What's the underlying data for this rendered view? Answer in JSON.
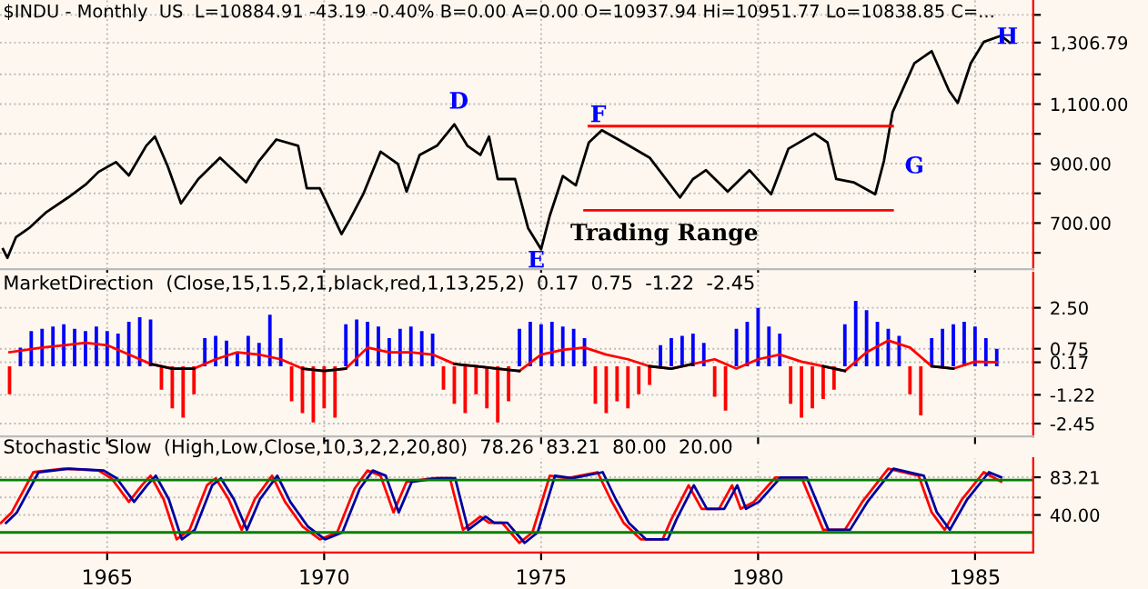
{
  "chart_data": [
    {
      "type": "line",
      "title": "$INDU - Monthly  US  L=10884.91 -43.19 -0.40% B=0.00 A=0.00 O=10937.94 Hi=10951.77 Lo=10838.85 C=...",
      "series": [
        {
          "color": "#000000",
          "x": [
            1962.6,
            1962.7,
            1962.9,
            1963.2,
            1963.6,
            1964.1,
            1964.5,
            1964.8,
            1965.2,
            1965.5,
            1965.9,
            1966.1,
            1966.4,
            1966.7,
            1967.1,
            1967.6,
            1968.2,
            1968.5,
            1968.9,
            1969.4,
            1969.6,
            1969.9,
            1970.4,
            1970.6,
            1970.9,
            1971.3,
            1971.7,
            1971.9,
            1972.2,
            1972.6,
            1973.0,
            1973.3,
            1973.6,
            1973.8,
            1974.0,
            1974.4,
            1974.7,
            1975.0,
            1975.2,
            1975.5,
            1975.8,
            1976.1,
            1976.4,
            1976.9,
            1977.5,
            1978.2,
            1978.5,
            1978.8,
            1979.3,
            1979.8,
            1980.3,
            1980.7,
            1981.3,
            1981.6,
            1981.8,
            1982.2,
            1982.7,
            1982.9,
            1983.1,
            1983.6,
            1984.0,
            1984.4,
            1984.6,
            1984.9,
            1985.2,
            1985.6,
            1985.8
          ],
          "values": [
            612,
            583,
            653,
            683,
            737,
            786,
            829,
            872,
            905,
            860,
            960,
            991,
            889,
            766,
            848,
            920,
            837,
            909,
            981,
            960,
            817,
            817,
            663,
            714,
            797,
            940,
            899,
            806,
            929,
            960,
            1032,
            960,
            929,
            991,
            848,
            848,
            683,
            612,
            725,
            858,
            827,
            971,
            1012,
            971,
            920,
            786,
            848,
            878,
            806,
            878,
            797,
            950,
            1001,
            971,
            848,
            837,
            797,
            909,
            1073,
            1237,
            1278,
            1145,
            1104,
            1237,
            1309,
            1330,
            1306.79
          ]
        },
        {
          "color": "#ff0000",
          "x": [
            1976.1,
            1983.1
          ],
          "values": [
            1026,
            1026
          ]
        },
        {
          "color": "#ff0000",
          "x": [
            1976.0,
            1983.1
          ],
          "values": [
            743,
            743
          ]
        }
      ],
      "annotations": [
        "D",
        "E",
        "F",
        "G",
        "H",
        "Trading Range"
      ],
      "xlim": [
        1962.53,
        1986.34
      ],
      "ylim": [
        545,
        1450
      ],
      "xticks": [
        1965,
        1970,
        1975,
        1980,
        1985
      ],
      "yticks": [
        {
          "value": 600,
          "label": null
        },
        {
          "value": 700,
          "label": "700.00"
        },
        {
          "value": 800,
          "label": null
        },
        {
          "value": 900,
          "label": "900.00"
        },
        {
          "value": 1000,
          "label": null
        },
        {
          "value": 1100,
          "label": "1,100.00"
        },
        {
          "value": 1200,
          "label": null
        },
        {
          "value": 1306.79,
          "label": "1,306.79"
        },
        {
          "value": 1400,
          "label": null
        }
      ],
      "grid": true,
      "tick_labels": "y"
    },
    {
      "type": "bar",
      "title": "MarketDirection  (Close,15,1.5,2,1,black,red,1,13,25,2)  0.17  0.75  -1.22  -2.45",
      "series": [
        {
          "type": "bar",
          "color": "#0000ff",
          "x": [
            1963.0,
            1963.25,
            1963.5,
            1963.75,
            1964.0,
            1964.25,
            1964.5,
            1964.75,
            1965.0,
            1965.25,
            1965.5,
            1965.75,
            1966.0,
            1967.25,
            1967.5,
            1967.75,
            1968.0,
            1968.25,
            1968.5,
            1968.75,
            1969.0,
            1970.5,
            1970.75,
            1971.0,
            1971.25,
            1971.5,
            1971.75,
            1972.0,
            1972.25,
            1972.5,
            1974.5,
            1974.75,
            1975.0,
            1975.25,
            1975.5,
            1975.75,
            1976.0,
            1977.75,
            1978.0,
            1978.25,
            1978.5,
            1978.75,
            1979.5,
            1979.75,
            1980.0,
            1980.25,
            1980.5,
            1982.0,
            1982.25,
            1982.5,
            1982.75,
            1983.0,
            1983.25,
            1984.0,
            1984.25,
            1984.5,
            1984.75,
            1985.0,
            1985.25,
            1985.5
          ],
          "values": [
            0.8,
            1.5,
            1.6,
            1.7,
            1.8,
            1.6,
            1.5,
            1.7,
            1.5,
            1.4,
            1.9,
            2.1,
            2.0,
            1.2,
            1.3,
            1.1,
            0.6,
            1.3,
            1.0,
            2.2,
            1.2,
            1.8,
            2.0,
            1.9,
            1.7,
            1.2,
            1.6,
            1.7,
            1.5,
            1.4,
            1.6,
            1.9,
            1.8,
            1.9,
            1.7,
            1.6,
            1.2,
            0.9,
            1.2,
            1.3,
            1.4,
            1.0,
            1.6,
            1.9,
            2.5,
            1.7,
            1.4,
            1.8,
            2.8,
            2.4,
            1.9,
            1.6,
            1.3,
            1.2,
            1.6,
            1.8,
            1.9,
            1.7,
            1.2,
            0.75
          ]
        },
        {
          "type": "bar",
          "color": "#ff0000",
          "x": [
            1962.75,
            1966.25,
            1966.5,
            1966.75,
            1967.0,
            1969.25,
            1969.5,
            1969.75,
            1970.0,
            1970.25,
            1972.75,
            1973.0,
            1973.25,
            1973.5,
            1973.75,
            1974.0,
            1974.25,
            1976.25,
            1976.5,
            1976.75,
            1977.0,
            1977.25,
            1977.5,
            1979.0,
            1979.25,
            1980.75,
            1981.0,
            1981.25,
            1981.5,
            1981.75,
            1983.5,
            1983.75
          ],
          "values": [
            -1.2,
            -1.0,
            -1.8,
            -2.2,
            -1.2,
            -1.5,
            -2.0,
            -2.4,
            -1.8,
            -2.2,
            -1.0,
            -1.6,
            -2.0,
            -1.2,
            -1.8,
            -2.4,
            -1.5,
            -1.6,
            -2.0,
            -1.5,
            -1.8,
            -1.2,
            -0.8,
            -1.3,
            -1.9,
            -1.6,
            -2.2,
            -1.8,
            -1.4,
            -1.0,
            -1.2,
            -2.1
          ]
        },
        {
          "type": "line",
          "color": "#ff0000",
          "x": [
            1962.75,
            1963.5,
            1964,
            1964.5,
            1965,
            1965.5,
            1966,
            1966.5,
            1967,
            1967.5,
            1968,
            1968.5,
            1969,
            1969.5,
            1970,
            1970.5,
            1971,
            1971.5,
            1972,
            1972.5,
            1973,
            1973.5,
            1974,
            1974.5,
            1975,
            1975.5,
            1976,
            1976.5,
            1977,
            1977.5,
            1978,
            1978.5,
            1979,
            1979.5,
            1980,
            1980.5,
            1981,
            1981.5,
            1982,
            1982.5,
            1983,
            1983.5,
            1984,
            1984.5,
            1985,
            1985.5
          ],
          "values": [
            0.6,
            0.8,
            0.9,
            1.0,
            0.9,
            0.5,
            0.1,
            -0.1,
            -0.1,
            0.3,
            0.6,
            0.5,
            0.3,
            -0.1,
            -0.2,
            -0.1,
            0.8,
            0.6,
            0.6,
            0.5,
            0.1,
            0.0,
            -0.1,
            -0.2,
            0.5,
            0.7,
            0.8,
            0.5,
            0.3,
            0.0,
            -0.1,
            0.1,
            0.3,
            -0.1,
            0.3,
            0.5,
            0.2,
            0.0,
            -0.2,
            0.6,
            1.1,
            0.8,
            0.0,
            -0.1,
            0.2,
            0.17
          ]
        },
        {
          "type": "line",
          "color": "#000000",
          "x": [
            1966,
            1966.5,
            1967
          ],
          "values": [
            0.1,
            -0.1,
            -0.1
          ]
        },
        {
          "type": "line",
          "color": "#000000",
          "x": [
            1969.5,
            1970,
            1970.5
          ],
          "values": [
            -0.1,
            -0.2,
            -0.1
          ]
        },
        {
          "type": "line",
          "color": "#000000",
          "x": [
            1973,
            1973.5,
            1974,
            1974.5
          ],
          "values": [
            0.1,
            0.0,
            -0.1,
            -0.2
          ]
        },
        {
          "type": "line",
          "color": "#000000",
          "x": [
            1977.5,
            1978,
            1978.5
          ],
          "values": [
            0.0,
            -0.1,
            0.1
          ]
        },
        {
          "type": "line",
          "color": "#000000",
          "x": [
            1981.5,
            1982
          ],
          "values": [
            0.0,
            -0.2
          ]
        },
        {
          "type": "line",
          "color": "#000000",
          "x": [
            1984,
            1984.5
          ],
          "values": [
            0.0,
            -0.1
          ]
        }
      ],
      "xlim": [
        1962.53,
        1986.34
      ],
      "ylim": [
        -3,
        4
      ],
      "xticks": [
        1965,
        1970,
        1975,
        1980,
        1985
      ],
      "yticks": [
        {
          "value": 2.5,
          "label": "2.50"
        },
        {
          "value": 0.75,
          "label": "0.75"
        },
        {
          "value": 0.17,
          "label": "0.17"
        },
        {
          "value": -1.22,
          "label": "-1.22"
        },
        {
          "value": -2.45,
          "label": "-2.45"
        }
      ],
      "grid": true,
      "tick_labels": "y"
    },
    {
      "type": "line",
      "title": "Stochastic Slow  (High,Low,Close,10,3,2,2,20,80)  78.26  83.21  80.00  20.00",
      "series": [
        {
          "color": "#ff0000",
          "x": [
            1962.55,
            1962.8,
            1963.3,
            1964.0,
            1964.8,
            1965.1,
            1965.5,
            1965.8,
            1966.0,
            1966.3,
            1966.6,
            1966.9,
            1967.3,
            1967.5,
            1967.8,
            1968.1,
            1968.4,
            1968.8,
            1969.1,
            1969.5,
            1969.9,
            1970.3,
            1970.7,
            1971.0,
            1971.3,
            1971.6,
            1971.9,
            1972.5,
            1972.9,
            1973.2,
            1973.6,
            1973.8,
            1974.1,
            1974.5,
            1974.8,
            1975.2,
            1975.6,
            1976.3,
            1976.6,
            1976.9,
            1977.3,
            1977.8,
            1978.0,
            1978.4,
            1978.7,
            1979.1,
            1979.4,
            1979.6,
            1979.9,
            1980.4,
            1981.0,
            1981.5,
            1982.0,
            1982.4,
            1983.0,
            1983.7,
            1984.0,
            1984.3,
            1984.7,
            1985.2,
            1985.6
          ],
          "values": [
            31,
            43,
            89,
            93,
            91,
            82,
            55,
            74,
            85,
            58,
            12,
            23,
            74,
            82,
            58,
            23,
            58,
            85,
            55,
            27,
            12,
            20,
            70,
            91,
            85,
            43,
            78,
            82,
            82,
            23,
            38,
            31,
            31,
            8,
            20,
            85,
            82,
            89,
            58,
            31,
            12,
            12,
            35,
            74,
            47,
            47,
            74,
            47,
            55,
            83,
            83,
            23,
            23,
            55,
            93,
            85,
            43,
            23,
            58,
            89,
            78.26
          ]
        },
        {
          "color": "#0000a0",
          "x": [
            1962.67,
            1962.92,
            1963.42,
            1964.12,
            1964.92,
            1965.22,
            1965.62,
            1965.92,
            1966.12,
            1966.42,
            1966.72,
            1967.02,
            1967.42,
            1967.62,
            1967.92,
            1968.22,
            1968.52,
            1968.92,
            1969.22,
            1969.62,
            1970.02,
            1970.42,
            1970.82,
            1971.12,
            1971.42,
            1971.72,
            1972.02,
            1972.62,
            1973.02,
            1973.32,
            1973.72,
            1973.92,
            1974.22,
            1974.62,
            1974.92,
            1975.32,
            1975.72,
            1976.42,
            1976.72,
            1977.02,
            1977.42,
            1977.92,
            1978.12,
            1978.52,
            1978.82,
            1979.22,
            1979.52,
            1979.72,
            1980.02,
            1980.52,
            1981.12,
            1981.62,
            1982.12,
            1982.52,
            1983.12,
            1983.82,
            1984.12,
            1984.42,
            1984.82,
            1985.32,
            1985.6
          ],
          "values": [
            31,
            43,
            89,
            93,
            91,
            82,
            55,
            74,
            85,
            58,
            12,
            23,
            74,
            82,
            58,
            23,
            58,
            85,
            55,
            27,
            12,
            20,
            70,
            91,
            85,
            43,
            78,
            82,
            82,
            23,
            38,
            31,
            31,
            8,
            20,
            85,
            82,
            89,
            58,
            31,
            12,
            12,
            35,
            74,
            47,
            47,
            74,
            47,
            55,
            83,
            83,
            23,
            23,
            55,
            93,
            85,
            43,
            23,
            58,
            89,
            83.21
          ]
        }
      ],
      "ref_lines": [
        {
          "axis": "y",
          "value": 80,
          "color": "#008000"
        },
        {
          "axis": "y",
          "value": 20,
          "color": "#008000"
        }
      ],
      "xlim": [
        1962.53,
        1986.34
      ],
      "ylim": [
        -3,
        105
      ],
      "xticks": [
        1965,
        1970,
        1975,
        1980,
        1985
      ],
      "yticks": [
        {
          "value": 40,
          "label": "40.00"
        },
        {
          "value": 60,
          "label": null
        },
        {
          "value": 83.21,
          "label": "83.21"
        }
      ],
      "grid": true
    }
  ]
}
